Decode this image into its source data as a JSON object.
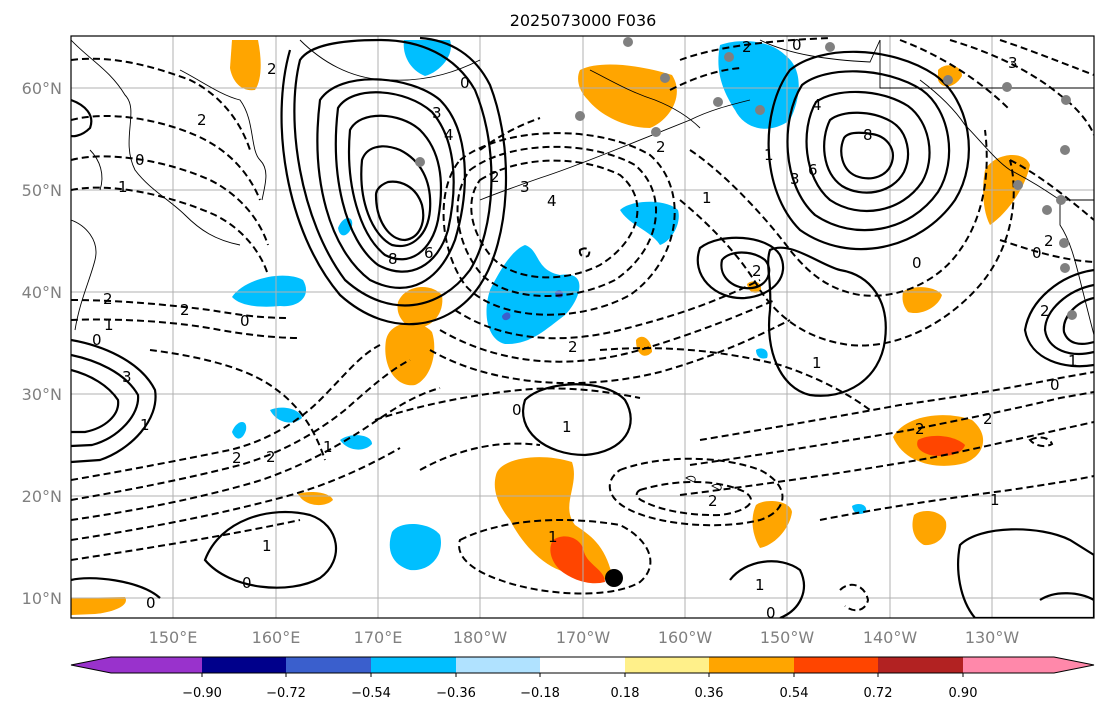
{
  "title": "2025073000 F036",
  "lon_labels": [
    "150°E",
    "160°E",
    "170°E",
    "180°W",
    "170°W",
    "160°W",
    "150°W",
    "140°W",
    "130°W"
  ],
  "lat_labels": [
    "60°N",
    "50°N",
    "40°N",
    "30°N",
    "20°N",
    "10°N"
  ],
  "colorbar": {
    "tick_labels": [
      "−0.90",
      "−0.72",
      "−0.54",
      "−0.36",
      "−0.18",
      "0.18",
      "0.36",
      "0.54",
      "0.72",
      "0.90"
    ],
    "colors": [
      "#9932cc",
      "#00008b",
      "#3a5fcd",
      "#00bfff",
      "#b0e2ff",
      "#ffffff",
      "#fff08a",
      "#ffa500",
      "#ff4500",
      "#b22222",
      "#ff88aa"
    ]
  },
  "contour_labels": [
    "3",
    "4",
    "6",
    "8",
    "3",
    "4",
    "1",
    "6",
    "8",
    "3",
    "2",
    "1",
    "0",
    "2",
    "1",
    "2",
    "0",
    "2",
    "3",
    "1",
    "0",
    "1",
    "2",
    "2",
    "1",
    "0",
    "2",
    "2",
    "2",
    "0",
    "1",
    "1",
    "1",
    "0",
    "2",
    "1",
    "0",
    "1",
    "0",
    "2",
    "4",
    "2",
    "0",
    "3",
    "0",
    "2",
    "0",
    "2",
    "1",
    "2",
    "2",
    "1",
    "0"
  ],
  "storm_marker": "black dot"
}
